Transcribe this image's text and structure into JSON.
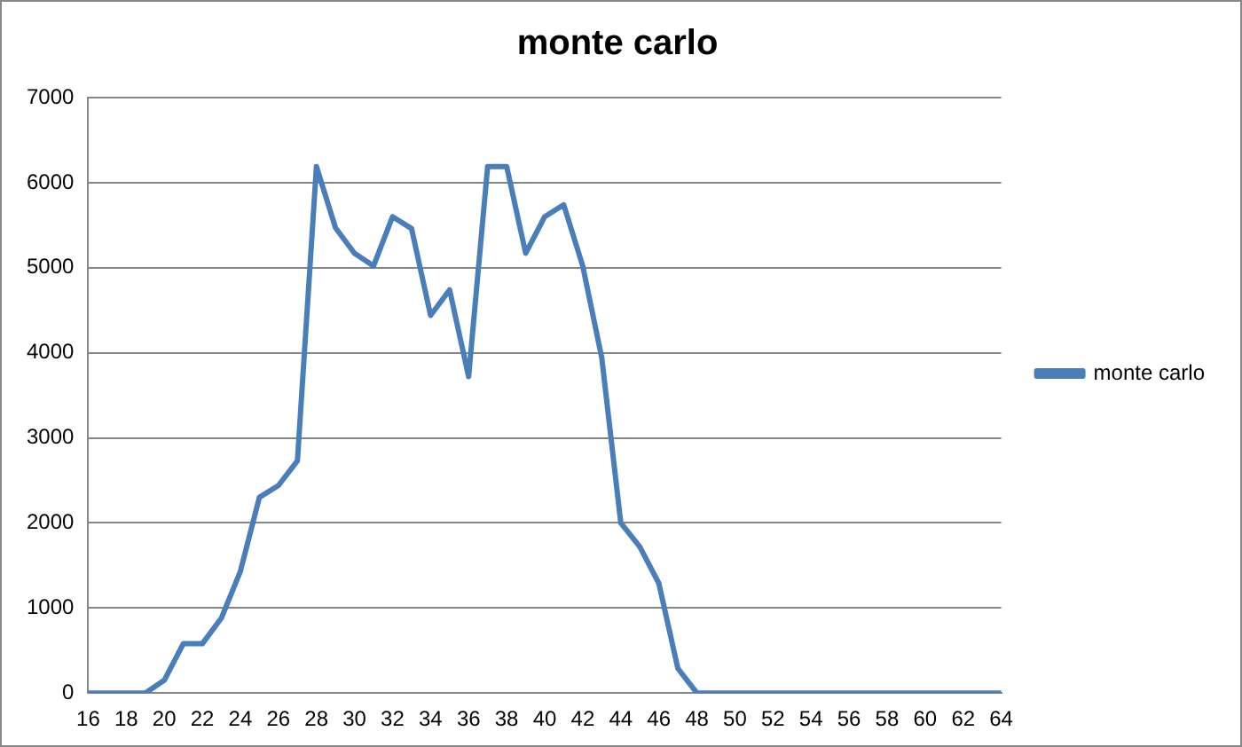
{
  "chart_data": {
    "type": "line",
    "title": "monte carlo",
    "categories": [
      "16",
      null,
      "18",
      null,
      "20",
      null,
      "22",
      null,
      "24",
      null,
      "26",
      null,
      "28",
      null,
      "30",
      null,
      "32",
      null,
      "34",
      null,
      "36",
      null,
      "38",
      null,
      "40",
      null,
      "42",
      null,
      "44",
      null,
      "46",
      null,
      "48",
      null,
      "50",
      null,
      "52",
      null,
      "54",
      null,
      "56",
      null,
      "58",
      null,
      "60",
      null,
      "62",
      null,
      "64"
    ],
    "series": [
      {
        "name": "monte carlo",
        "color": "#4a7ebb",
        "values": [
          0,
          0,
          0,
          0,
          150,
          580,
          580,
          880,
          1430,
          2300,
          2440,
          2730,
          6190,
          5470,
          5170,
          5020,
          5600,
          5460,
          4440,
          4740,
          3720,
          6190,
          6190,
          5170,
          5600,
          5740,
          5020,
          3940,
          2000,
          1720,
          1290,
          290,
          0,
          0,
          0,
          0,
          0,
          0,
          0,
          0,
          0,
          0,
          0,
          0,
          0,
          0,
          0,
          0,
          0
        ]
      }
    ],
    "ylim": [
      0,
      7000
    ],
    "yticks": [
      0,
      1000,
      2000,
      3000,
      4000,
      5000,
      6000,
      7000
    ],
    "grid": "y",
    "legend": "right",
    "marker": "none",
    "line_style": "solid"
  }
}
